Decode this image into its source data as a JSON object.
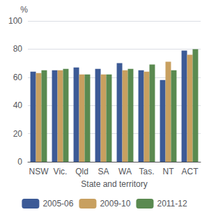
{
  "chart_data": {
    "type": "bar",
    "categories": [
      "NSW",
      "Vic.",
      "Qld",
      "SA",
      "WA",
      "Tas.",
      "NT",
      "ACT"
    ],
    "series": [
      {
        "name": "2005-06",
        "color": "#3c5a96",
        "values": [
          64,
          65,
          67,
          66,
          70,
          65,
          58,
          79
        ]
      },
      {
        "name": "2009-10",
        "color": "#c8a060",
        "values": [
          63,
          65,
          62,
          62,
          65,
          64,
          71,
          76
        ]
      },
      {
        "name": "2011-12",
        "color": "#5a8a50",
        "values": [
          65,
          66,
          62,
          62,
          66,
          69,
          65,
          80
        ]
      }
    ],
    "xlabel": "State and territory",
    "ylabel": "%",
    "ylim": [
      0,
      100
    ],
    "yticks": [
      0,
      20,
      40,
      60,
      80,
      100
    ],
    "grid": true,
    "legend": "bottom"
  }
}
